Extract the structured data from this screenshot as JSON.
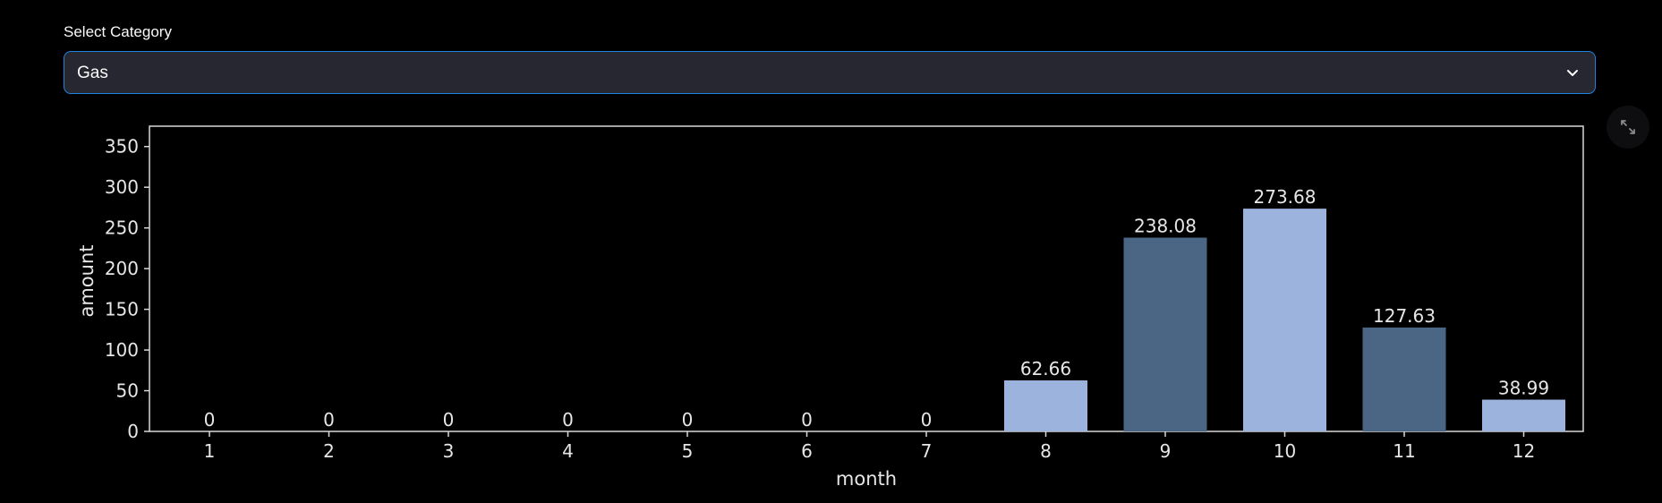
{
  "select": {
    "label": "Select Category",
    "value": "Gas"
  },
  "icons": {
    "dropdown": "chevron-down-icon",
    "fullscreen": "fullscreen-icon"
  },
  "colors": {
    "accent_border": "#1c83e1",
    "bar_light": "#9bb3dd",
    "bar_dark": "#4a6684",
    "axis": "#d9d9d9"
  },
  "chart_data": {
    "type": "bar",
    "title": "",
    "xlabel": "month",
    "ylabel": "amount",
    "categories": [
      "1",
      "2",
      "3",
      "4",
      "5",
      "6",
      "7",
      "8",
      "9",
      "10",
      "11",
      "12"
    ],
    "values": [
      0,
      0,
      0,
      0,
      0,
      0,
      0,
      62.66,
      238.08,
      273.68,
      127.63,
      38.99
    ],
    "data_labels": [
      "0",
      "0",
      "0",
      "0",
      "0",
      "0",
      "0",
      "62.66",
      "238.08",
      "273.68",
      "127.63",
      "38.99"
    ],
    "bar_colors": [
      "#9bb3dd",
      "#4a6684",
      "#9bb3dd",
      "#4a6684",
      "#9bb3dd",
      "#4a6684",
      "#9bb3dd",
      "#9bb3dd",
      "#4a6684",
      "#9bb3dd",
      "#4a6684",
      "#9bb3dd"
    ],
    "ylim": [
      0,
      375
    ],
    "yticks": [
      "0",
      "50",
      "100",
      "150",
      "200",
      "250",
      "300",
      "350"
    ],
    "grid": false,
    "legend": false
  }
}
